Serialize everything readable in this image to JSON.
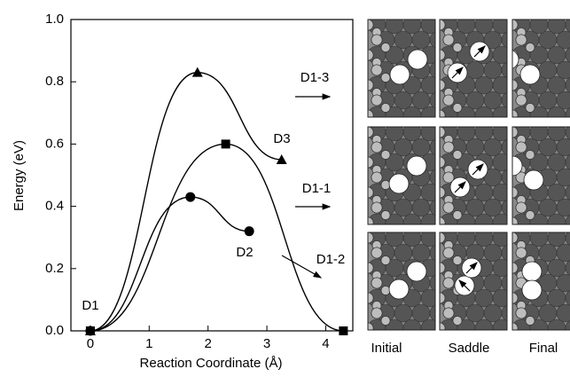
{
  "chart_data": {
    "type": "line",
    "xlabel": "Reaction Coordinate (Å)",
    "ylabel": "Energy (eV)",
    "xlim": [
      -0.33,
      4.46
    ],
    "ylim": [
      0,
      1
    ],
    "xticks": [
      0,
      1,
      2,
      3,
      4
    ],
    "yticks": [
      {
        "value": 0,
        "label": "0.0"
      },
      0.2,
      0.4,
      0.6,
      0.8,
      {
        "value": 1,
        "label": "1.0"
      }
    ],
    "series": [
      {
        "name": "D1-3",
        "color": "#000000",
        "marker": "triangle",
        "x": [
          0,
          1.82,
          3.25
        ],
        "values": [
          0,
          0.83,
          0.55
        ]
      },
      {
        "name": "D1-1",
        "color": "#000000",
        "marker": "square",
        "x": [
          0,
          2.3,
          4.3
        ],
        "values": [
          0,
          0.6,
          0
        ]
      },
      {
        "name": "D1-2",
        "color": "#000000",
        "marker": "circle",
        "x": [
          0,
          1.7,
          2.7
        ],
        "values": [
          0,
          0.43,
          0.32
        ]
      }
    ],
    "annotations": [
      "D1",
      "D2",
      "D3"
    ],
    "panel_labels": [
      "Initial",
      "Saddle",
      "Final"
    ]
  }
}
